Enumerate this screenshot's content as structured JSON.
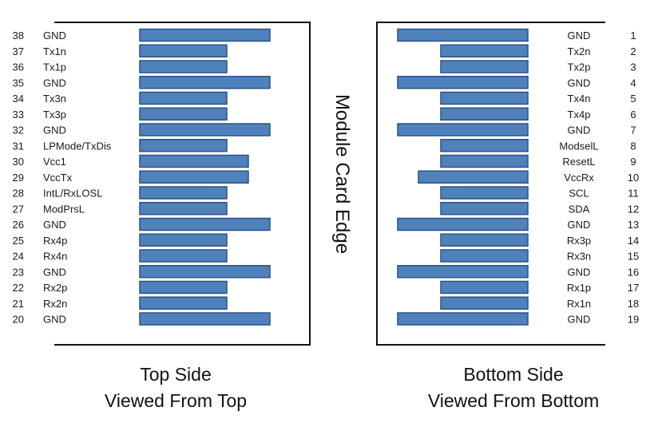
{
  "colors": {
    "pad_fill": "#4f81bd",
    "pad_stroke": "#2c5283",
    "frame": "#111111"
  },
  "center_label": "Module Card Edge",
  "top_side": {
    "caption_line1": "Top Side",
    "caption_line2": "Viewed From Top",
    "pins": [
      {
        "num": "38",
        "name": "GND",
        "pad": "long"
      },
      {
        "num": "37",
        "name": "Tx1n",
        "pad": "short"
      },
      {
        "num": "36",
        "name": "Tx1p",
        "pad": "short"
      },
      {
        "num": "35",
        "name": "GND",
        "pad": "long"
      },
      {
        "num": "34",
        "name": "Tx3n",
        "pad": "short"
      },
      {
        "num": "33",
        "name": "Tx3p",
        "pad": "short"
      },
      {
        "num": "32",
        "name": "GND",
        "pad": "long"
      },
      {
        "num": "31",
        "name": "LPMode/TxDis",
        "pad": "short"
      },
      {
        "num": "30",
        "name": "Vcc1",
        "pad": "medium"
      },
      {
        "num": "29",
        "name": "VccTx",
        "pad": "medium"
      },
      {
        "num": "28",
        "name": "IntL/RxLOSL",
        "pad": "short"
      },
      {
        "num": "27",
        "name": "ModPrsL",
        "pad": "short"
      },
      {
        "num": "26",
        "name": "GND",
        "pad": "long"
      },
      {
        "num": "25",
        "name": "Rx4p",
        "pad": "short"
      },
      {
        "num": "24",
        "name": "Rx4n",
        "pad": "short"
      },
      {
        "num": "23",
        "name": "GND",
        "pad": "long"
      },
      {
        "num": "22",
        "name": "Rx2p",
        "pad": "short"
      },
      {
        "num": "21",
        "name": "Rx2n",
        "pad": "short"
      },
      {
        "num": "20",
        "name": "GND",
        "pad": "long"
      }
    ]
  },
  "bottom_side": {
    "caption_line1": "Bottom Side",
    "caption_line2": "Viewed From Bottom",
    "pins": [
      {
        "num": "1",
        "name": "GND",
        "pad": "long"
      },
      {
        "num": "2",
        "name": "Tx2n",
        "pad": "short"
      },
      {
        "num": "3",
        "name": "Tx2p",
        "pad": "short"
      },
      {
        "num": "4",
        "name": "GND",
        "pad": "long"
      },
      {
        "num": "5",
        "name": "Tx4n",
        "pad": "short"
      },
      {
        "num": "6",
        "name": "Tx4p",
        "pad": "short"
      },
      {
        "num": "7",
        "name": "GND",
        "pad": "long"
      },
      {
        "num": "8",
        "name": "ModselL",
        "pad": "short"
      },
      {
        "num": "9",
        "name": "ResetL",
        "pad": "short"
      },
      {
        "num": "10",
        "name": "VccRx",
        "pad": "medium"
      },
      {
        "num": "11",
        "name": "SCL",
        "pad": "short"
      },
      {
        "num": "12",
        "name": "SDA",
        "pad": "short"
      },
      {
        "num": "13",
        "name": "GND",
        "pad": "long"
      },
      {
        "num": "14",
        "name": "Rx3p",
        "pad": "short"
      },
      {
        "num": "15",
        "name": "Rx3n",
        "pad": "short"
      },
      {
        "num": "16",
        "name": "GND",
        "pad": "long"
      },
      {
        "num": "17",
        "name": "Rx1p",
        "pad": "short"
      },
      {
        "num": "18",
        "name": "Rx1n",
        "pad": "short"
      },
      {
        "num": "19",
        "name": "GND",
        "pad": "long"
      }
    ]
  }
}
